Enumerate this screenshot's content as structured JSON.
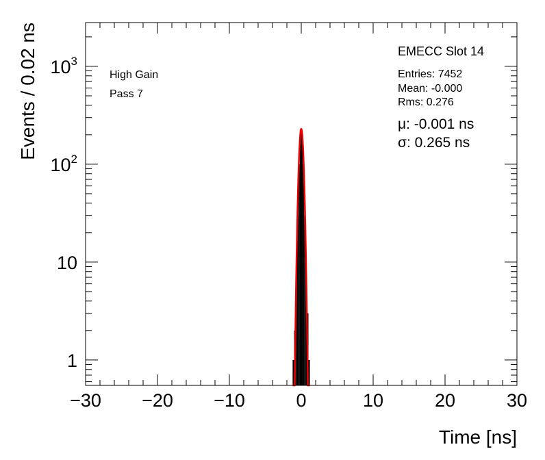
{
  "chart_data": {
    "type": "histogram",
    "title": "EMECC Slot 14",
    "xlabel": "Time [ns]",
    "ylabel": "Events / 0.02 ns",
    "xlim": [
      -30,
      30
    ],
    "ylim": [
      0.55,
      2800
    ],
    "yscale": "log",
    "x_ticks": [
      {
        "value": -30,
        "label": "−30"
      },
      {
        "value": -20,
        "label": "−20"
      },
      {
        "value": -10,
        "label": "−10"
      },
      {
        "value": 0,
        "label": "0"
      },
      {
        "value": 10,
        "label": "10"
      },
      {
        "value": 20,
        "label": "20"
      },
      {
        "value": 30,
        "label": "30"
      }
    ],
    "y_ticks": [
      {
        "value": 1,
        "label": "1",
        "sup": ""
      },
      {
        "value": 10,
        "label": "10",
        "sup": ""
      },
      {
        "value": 100,
        "label": "10",
        "sup": "2"
      },
      {
        "value": 1000,
        "label": "10",
        "sup": "3"
      }
    ],
    "annotations": {
      "gain": "High Gain",
      "pass": "Pass 7"
    },
    "stats": {
      "entries": "Entries: 7452",
      "mean": "Mean: -0.000",
      "rms": "Rms: 0.276"
    },
    "fit": {
      "mu_label": "μ: -0.001 ns",
      "sigma_label": "σ: 0.265 ns",
      "mu": -0.001,
      "sigma": 0.265,
      "amplitude": 230,
      "color": "#ee0000"
    },
    "histogram": {
      "color": "#000000",
      "bins": [
        {
          "x0": -1.2,
          "x1": -1.0,
          "value": 1
        },
        {
          "x0": -1.0,
          "x1": -0.8,
          "value": 2
        },
        {
          "x0": -0.8,
          "x1": -0.6,
          "value": 7
        },
        {
          "x0": -0.6,
          "x1": -0.4,
          "value": 30
        },
        {
          "x0": -0.4,
          "x1": -0.2,
          "value": 100
        },
        {
          "x0": -0.2,
          "x1": 0.0,
          "value": 225
        },
        {
          "x0": 0.0,
          "x1": 0.2,
          "value": 220
        },
        {
          "x0": 0.2,
          "x1": 0.4,
          "value": 100
        },
        {
          "x0": 0.4,
          "x1": 0.6,
          "value": 30
        },
        {
          "x0": 0.6,
          "x1": 0.8,
          "value": 7
        },
        {
          "x0": 0.8,
          "x1": 1.0,
          "value": 3
        },
        {
          "x0": 1.0,
          "x1": 1.2,
          "value": 1
        }
      ]
    }
  }
}
